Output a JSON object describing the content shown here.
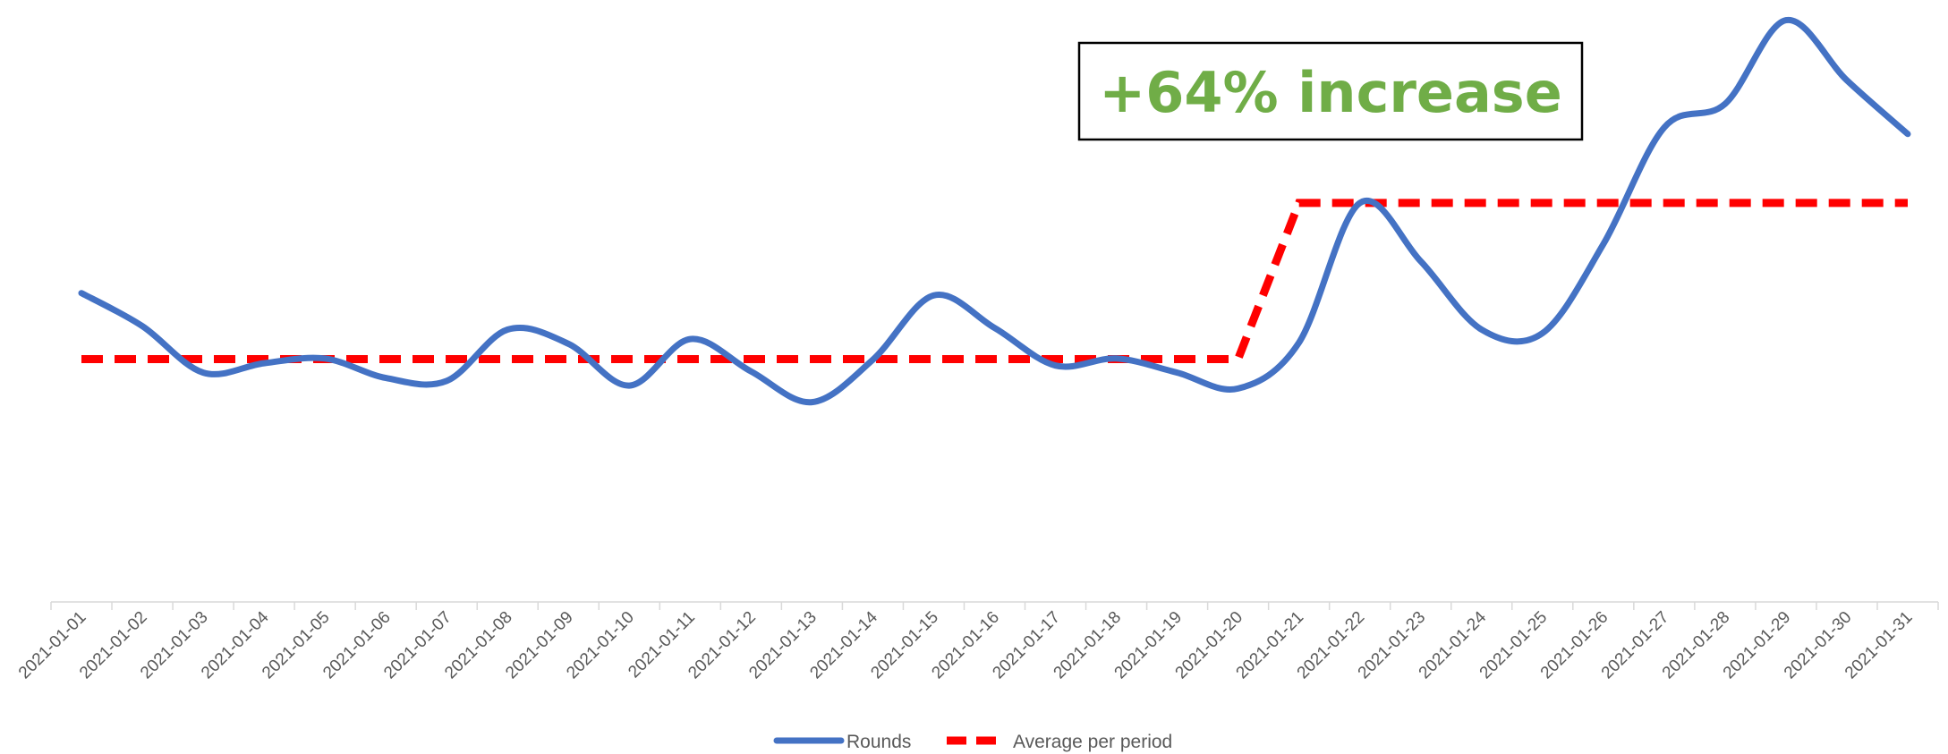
{
  "chart_data": {
    "type": "line",
    "title": "",
    "xlabel": "",
    "ylabel": "",
    "y_axis_visible": false,
    "grid": false,
    "legend_position": "bottom",
    "categories": [
      "2021-01-01",
      "2021-01-02",
      "2021-01-03",
      "2021-01-04",
      "2021-01-05",
      "2021-01-06",
      "2021-01-07",
      "2021-01-08",
      "2021-01-09",
      "2021-01-10",
      "2021-01-11",
      "2021-01-12",
      "2021-01-13",
      "2021-01-14",
      "2021-01-15",
      "2021-01-16",
      "2021-01-17",
      "2021-01-18",
      "2021-01-19",
      "2021-01-20",
      "2021-01-21",
      "2021-01-22",
      "2021-01-23",
      "2021-01-24",
      "2021-01-25",
      "2021-01-26",
      "2021-01-27",
      "2021-01-28",
      "2021-01-29",
      "2021-01-30",
      "2021-01-31"
    ],
    "series": [
      {
        "name": "Rounds",
        "color": "#4472C4",
        "style": "solid-smooth",
        "values": [
          52.4,
          46.8,
          38.9,
          40.5,
          41.3,
          38.0,
          37.5,
          46.2,
          43.8,
          36.7,
          44.6,
          39.1,
          33.9,
          41.1,
          52.0,
          46.5,
          40.1,
          41.3,
          38.9,
          36.2,
          44.0,
          67.7,
          57.8,
          46.2,
          45.6,
          60.7,
          80.5,
          84.5,
          98.7,
          88.5,
          79.4
        ]
      },
      {
        "name": "Average per period",
        "color": "#FF0000",
        "style": "dashed",
        "values": [
          41.2,
          41.2,
          41.2,
          41.2,
          41.2,
          41.2,
          41.2,
          41.2,
          41.2,
          41.2,
          41.2,
          41.2,
          41.2,
          41.2,
          41.2,
          41.2,
          41.2,
          41.2,
          41.2,
          41.2,
          67.7,
          67.7,
          67.7,
          67.7,
          67.7,
          67.7,
          67.7,
          67.7,
          67.7,
          67.7,
          67.7
        ]
      }
    ],
    "ylim": [
      0,
      100
    ],
    "annotation": {
      "text": "+64% increase",
      "color": "#70AD47"
    },
    "axis_color": "#D9D9D9",
    "tick_label_color": "#595959"
  }
}
